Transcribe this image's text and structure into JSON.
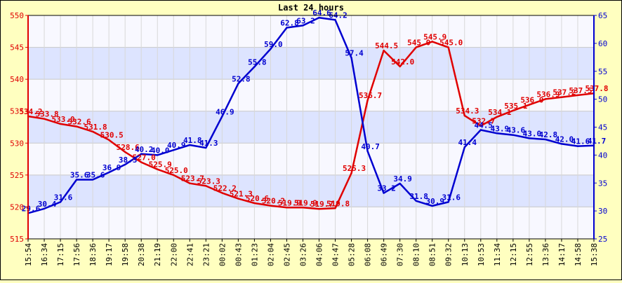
{
  "chart_data": {
    "type": "line",
    "title": "Last 24 hours",
    "x_labels": [
      "15:54",
      "16:34",
      "17:15",
      "17:56",
      "18:36",
      "19:17",
      "19:58",
      "20:38",
      "21:19",
      "22:00",
      "22:41",
      "23:21",
      "00:02",
      "00:43",
      "01:23",
      "02:04",
      "02:45",
      "03:26",
      "04:06",
      "04:47",
      "05:28",
      "06:08",
      "06:49",
      "07:30",
      "08:10",
      "08:51",
      "09:32",
      "10:13",
      "10:53",
      "11:34",
      "12:15",
      "12:55",
      "13:36",
      "14:17",
      "14:58",
      "15:38"
    ],
    "left_axis": {
      "ylim": [
        515,
        550
      ],
      "ticks": [
        "515",
        "520",
        "525",
        "530",
        "535",
        "540",
        "545",
        "550"
      ],
      "color": "#e00000"
    },
    "right_axis": {
      "ylim": [
        25,
        65
      ],
      "ticks": [
        "25",
        "30",
        "35",
        "40",
        "45",
        "50",
        "55",
        "60",
        "65"
      ],
      "color": "#0000d0"
    },
    "series": [
      {
        "axis": "left",
        "color": "#e00000",
        "values": [
          534.2,
          533.8,
          533.0,
          532.6,
          531.8,
          530.5,
          528.6,
          527.0,
          525.9,
          525.0,
          523.7,
          523.3,
          522.2,
          521.3,
          520.6,
          520.2,
          519.9,
          519.9,
          519.7,
          519.8,
          525.3,
          536.7,
          544.5,
          542.0,
          545.0,
          545.9,
          545.0,
          534.3,
          532.7,
          534.1,
          535.1,
          536.0,
          536.9,
          537.2,
          537.5,
          537.8
        ],
        "labels": [
          "534.2",
          "533.8",
          "533.0",
          "532.6",
          "531.8",
          "530.5",
          "528.6",
          "527.0",
          "525.9",
          "525.0",
          "523.7",
          "523.3",
          "522.2",
          "521.3",
          "520.6",
          "520.2",
          "519.9",
          "519.9",
          "519.7",
          "519.8",
          "525.3",
          "536.7",
          "544.5",
          "542.0",
          "545.0",
          "545.9",
          "545.0",
          "534.3",
          "532.7",
          "534.1",
          "535.1",
          "536.0",
          "536.9",
          "537.2",
          "537.5",
          "537.8"
        ]
      },
      {
        "axis": "right",
        "color": "#0000d0",
        "values": [
          29.6,
          30.4,
          31.6,
          35.6,
          35.6,
          36.9,
          38.3,
          40.2,
          40.0,
          40.9,
          41.8,
          41.3,
          46.9,
          52.8,
          55.8,
          59.0,
          62.8,
          63.2,
          64.6,
          64.2,
          57.4,
          40.7,
          33.2,
          34.9,
          31.8,
          30.9,
          31.6,
          41.4,
          44.5,
          43.9,
          43.6,
          43.0,
          42.8,
          42.0,
          41.6,
          41.7
        ],
        "labels": [
          "29.6",
          "30.4",
          "31.6",
          "35.6",
          "35.6",
          "36.9",
          "38.3",
          "40.2",
          "40.0",
          "40.9",
          "41.8",
          "41.3",
          "46.9",
          "52.8",
          "55.8",
          "59.0",
          "62.8",
          "63.2",
          "64.6",
          "64.2",
          "57.4",
          "40.7",
          "33.2",
          "34.9",
          "31.8",
          "30.9",
          "31.6",
          "41.4",
          "44.5",
          "43.9",
          "43.6",
          "43.0",
          "42.8",
          "42.0",
          "41.6",
          "41.7"
        ]
      }
    ],
    "grid": true
  }
}
